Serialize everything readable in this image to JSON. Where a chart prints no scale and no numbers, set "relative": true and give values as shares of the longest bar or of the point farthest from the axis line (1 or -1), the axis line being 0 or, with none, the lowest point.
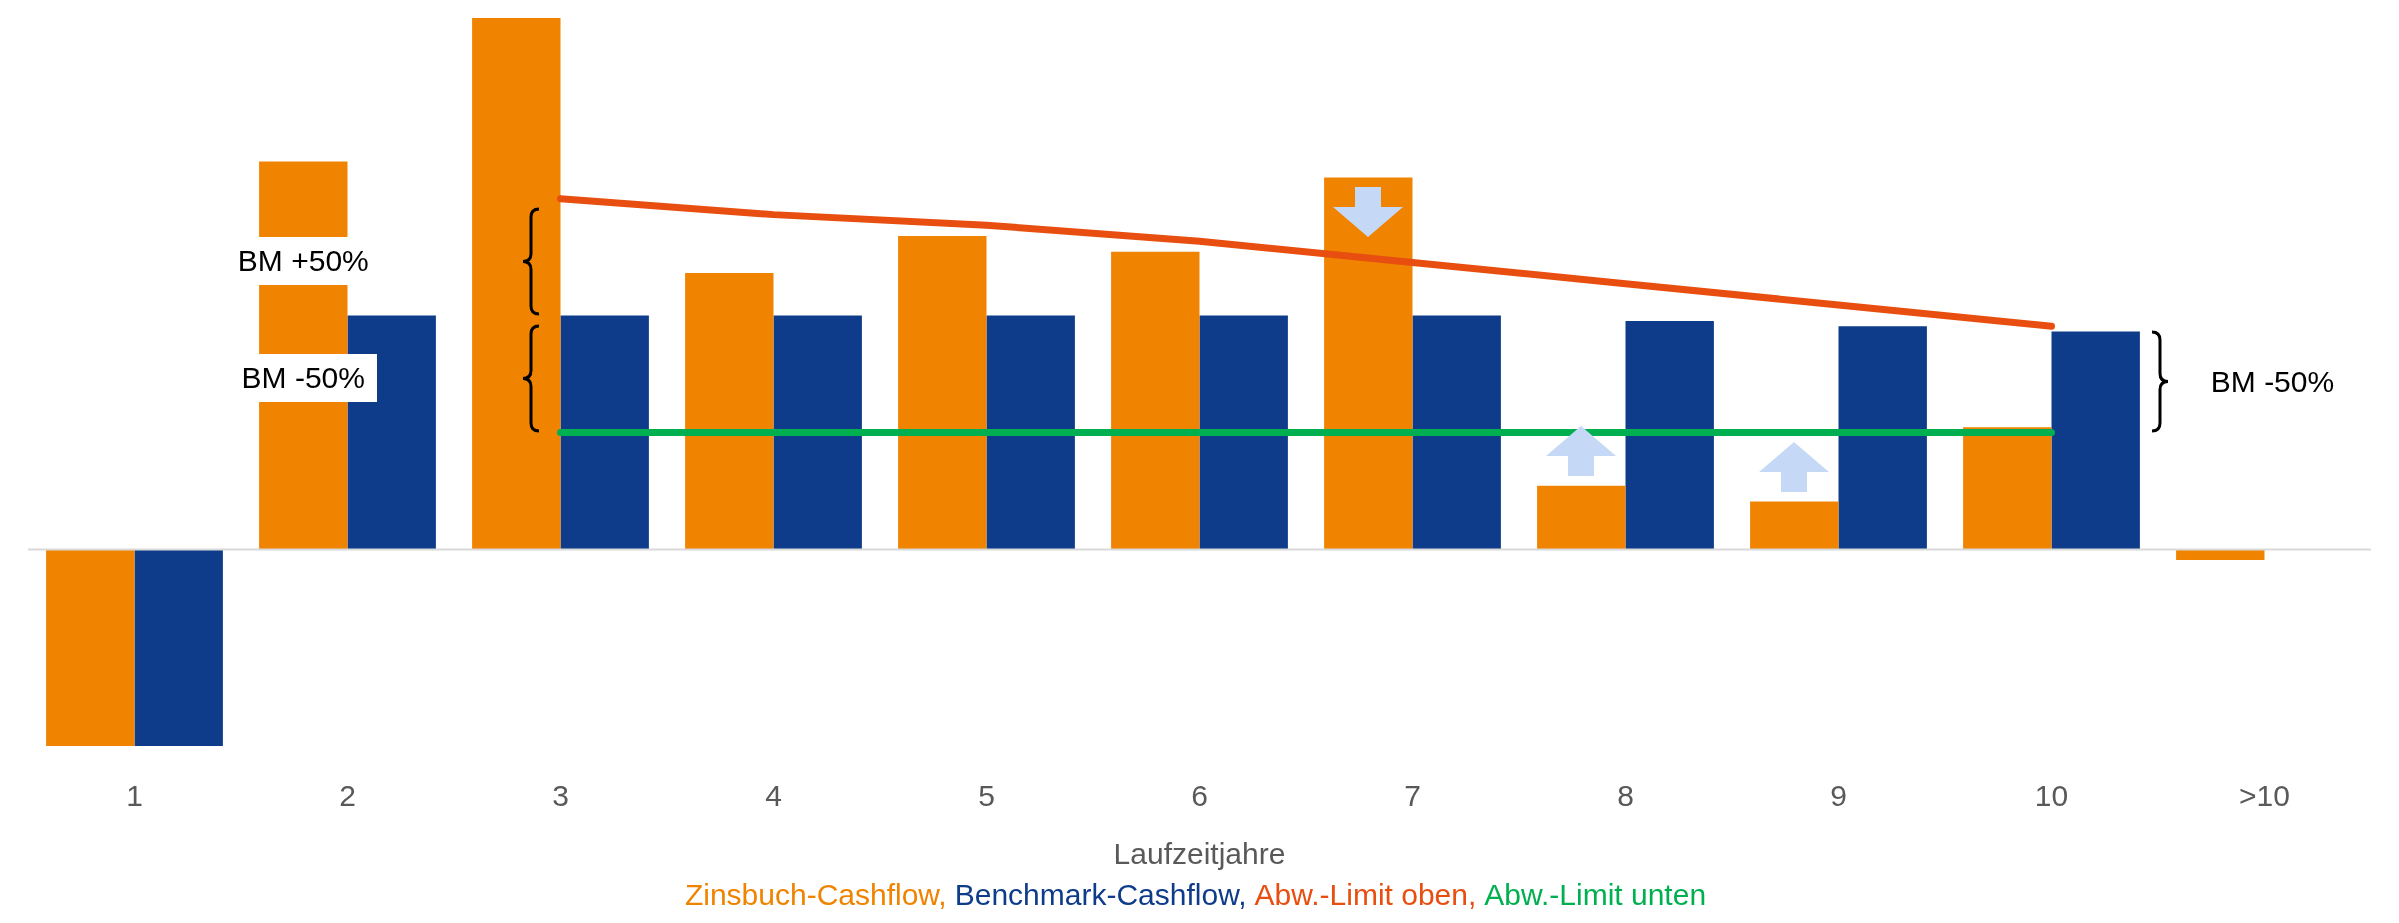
{
  "chart_data": {
    "type": "bar",
    "relative": true,
    "xlabel": "Laufzeitjahre",
    "legend": "bottom",
    "marker": "none",
    "line_style": "solid",
    "categories": [
      "1",
      "2",
      "3",
      "4",
      "5",
      "6",
      "7",
      "8",
      "9",
      "10",
      ">10"
    ],
    "series": [
      {
        "name": "Zinsbuch-Cashflow,",
        "color": "#f08300",
        "values": [
          -0.37,
          0.73,
          1,
          0.52,
          0.59,
          0.56,
          0.7,
          0.12,
          0.09,
          0.23,
          -0.02
        ]
      },
      {
        "name": "Benchmark-Cashflow,",
        "color": "#0f3c8a",
        "values": [
          -0.37,
          0.44,
          0.44,
          0.44,
          0.44,
          0.44,
          0.44,
          0.43,
          0.42,
          0.41,
          null
        ]
      },
      {
        "name": "Abw.-Limit oben,",
        "type": "line",
        "color": "#e84e0f",
        "values": [
          null,
          null,
          0.66,
          0.63,
          0.61,
          0.58,
          0.54,
          0.5,
          0.46,
          0.42,
          null
        ]
      },
      {
        "name": "Abw.-Limit unten",
        "type": "line",
        "color": "#00b050",
        "values": [
          null,
          null,
          0.22,
          0.22,
          0.22,
          0.22,
          0.22,
          0.22,
          0.22,
          0.22,
          null
        ]
      }
    ],
    "annotations": [
      "BM +50%",
      "BM -50%",
      "BM -50%"
    ]
  }
}
